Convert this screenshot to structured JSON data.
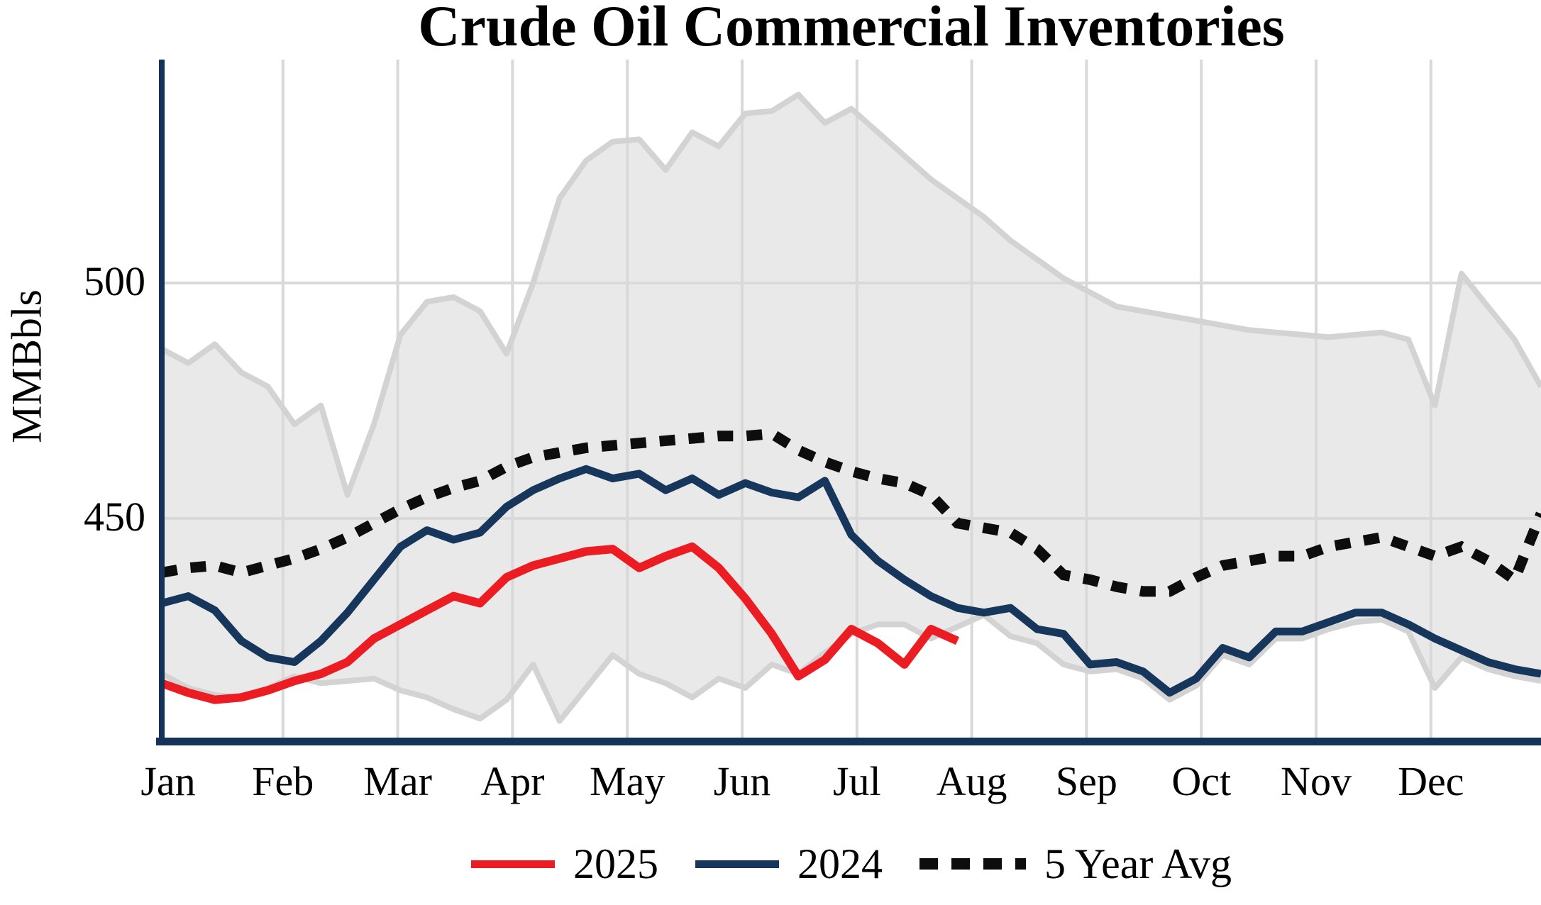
{
  "title": "Crude Oil Commercial Inventories",
  "y_axis": {
    "label": "MMBbls",
    "ticks": [
      500,
      450
    ]
  },
  "x_axis": {
    "months": [
      "Jan",
      "Feb",
      "Mar",
      "Apr",
      "May",
      "Jun",
      "Jul",
      "Aug",
      "Sep",
      "Oct",
      "Nov",
      "Dec"
    ]
  },
  "legend": {
    "items": [
      {
        "label": "2025",
        "swatch": "solid",
        "color": "#ec1c23"
      },
      {
        "label": "2024",
        "swatch": "solid",
        "color": "#17365c"
      },
      {
        "label": "5 Year Avg",
        "swatch": "dotted",
        "color": "#0d0d0d"
      }
    ]
  },
  "colors": {
    "red_2025": "#ec1c23",
    "navy_2024": "#17365c",
    "dotted_black": "#0d0d0d",
    "band_fill": "#e9e9e9",
    "band_edge": "#d3d3d3",
    "gridline": "#d9d9d9",
    "axis": "#153359"
  },
  "chart_data": {
    "type": "line",
    "title": "Crude Oil Commercial Inventories",
    "xlabel": "",
    "ylabel": "MMBbls",
    "x_unit": "weeks (Jan through Dec)",
    "yticks": [
      450,
      500
    ],
    "ylim": [
      402,
      548
    ],
    "grid": "vertical at each month start, horizontal at y-ticks",
    "legend_position": "bottom-center",
    "band": {
      "name": "5-year min-max range",
      "fill": "#e9e9e9",
      "edge": "#d3d3d3",
      "upper": [
        486,
        483,
        487,
        481,
        478,
        470,
        474,
        455,
        470,
        489,
        496,
        497,
        494,
        485,
        500,
        518,
        526,
        530,
        530.5,
        524,
        532,
        529,
        536,
        536.5,
        540,
        534,
        537,
        532,
        527,
        522,
        518,
        514,
        509,
        505,
        501,
        498,
        495,
        494,
        493,
        492,
        491,
        490,
        489.5,
        489,
        488.5,
        489,
        489.5,
        488,
        474,
        502,
        495,
        488,
        478
      ],
      "lower": [
        417,
        414,
        412.5,
        412,
        414,
        416.5,
        415,
        415.5,
        416,
        413.5,
        412,
        409.5,
        407.5,
        411.5,
        419,
        407,
        414,
        421,
        417,
        415,
        412,
        416,
        414,
        419,
        417,
        421.5,
        425.5,
        427.5,
        427.5,
        424.5,
        427,
        429.5,
        425,
        423.5,
        419,
        417.5,
        418,
        416,
        411.5,
        414.5,
        421,
        419,
        424.5,
        424.5,
        426.5,
        428,
        428.5,
        426,
        414,
        420.5,
        418,
        416.5,
        415.5
      ]
    },
    "series": [
      {
        "name": "2025",
        "color": "#ec1c23",
        "style": "solid",
        "ends_early_august": true,
        "weekly_values": [
          415,
          413,
          411.5,
          412,
          413.5,
          415.5,
          417,
          419.5,
          424.5,
          427.5,
          430.5,
          433.5,
          432,
          437.5,
          440,
          441.5,
          443,
          443.5,
          439.5,
          442,
          444,
          439.5,
          433,
          425.5,
          416.5,
          420,
          426.5,
          423.5,
          419,
          426.5,
          424
        ]
      },
      {
        "name": "2024",
        "color": "#17365c",
        "style": "solid",
        "weekly_values": [
          432,
          433.5,
          430.5,
          424,
          420.5,
          419.5,
          424,
          430,
          437,
          444,
          447.5,
          445.5,
          447,
          452.5,
          456,
          458.5,
          460.5,
          458.5,
          459.5,
          456,
          458.5,
          455,
          457.5,
          455.5,
          454.5,
          458,
          446.5,
          441,
          437,
          433.5,
          431,
          430,
          431,
          426.5,
          425.5,
          419,
          419.5,
          417.5,
          413,
          416,
          422.5,
          420.5,
          426,
          426,
          428,
          430,
          430,
          427.5,
          424.5,
          422,
          419.5,
          418,
          417
        ]
      },
      {
        "name": "5 Year Avg",
        "color": "#0d0d0d",
        "style": "dotted",
        "weekly_values": [
          438.5,
          439.5,
          440,
          438.5,
          440,
          441.5,
          443.5,
          446,
          449,
          452,
          454.5,
          456.5,
          458,
          461,
          463,
          464,
          465,
          465.5,
          466,
          466.5,
          467,
          467.5,
          467.5,
          468,
          464.5,
          462,
          460,
          458.5,
          457.5,
          455,
          449,
          448,
          447,
          443.5,
          438,
          437,
          435.5,
          434.5,
          434.5,
          437.5,
          440,
          441,
          442,
          442,
          444,
          445,
          446,
          444,
          442,
          444,
          441,
          437,
          451
        ]
      }
    ]
  }
}
